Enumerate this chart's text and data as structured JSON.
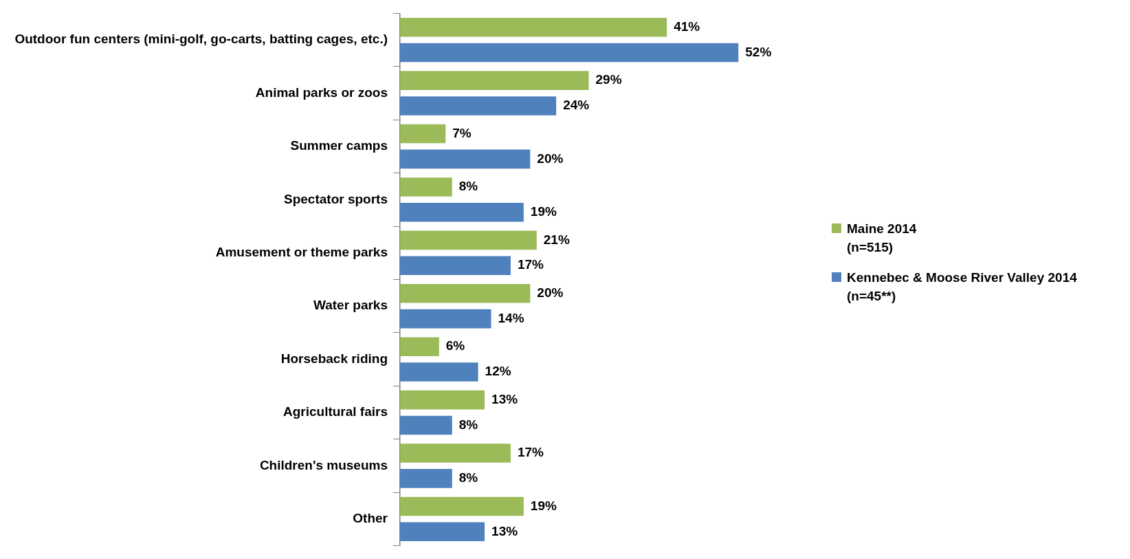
{
  "chart_data": {
    "type": "bar",
    "orientation": "horizontal",
    "legend": "right",
    "categories": [
      "Outdoor fun centers (mini-golf, go-carts, batting cages, etc.)",
      "Animal parks or zoos",
      "Summer camps",
      "Spectator sports",
      "Amusement or theme parks",
      "Water parks",
      "Horseback riding",
      "Agricultural fairs",
      "Children's museums",
      "Other"
    ],
    "series": [
      {
        "name": "Maine 2014\n(n=515)",
        "color": "#9bbb59",
        "values": [
          41,
          29,
          7,
          8,
          21,
          20,
          6,
          13,
          17,
          19
        ],
        "value_labels": [
          "41%",
          "29%",
          "7%",
          "8%",
          "21%",
          "20%",
          "6%",
          "13%",
          "17%",
          "19%"
        ]
      },
      {
        "name": "Kennebec & Moose River Valley 2014\n(n=45**)",
        "color": "#4f81bd",
        "values": [
          52,
          24,
          20,
          19,
          17,
          14,
          12,
          8,
          8,
          13
        ],
        "value_labels": [
          "52%",
          "24%",
          "20%",
          "19%",
          "17%",
          "14%",
          "12%",
          "8%",
          "8%",
          "13%"
        ]
      }
    ]
  }
}
